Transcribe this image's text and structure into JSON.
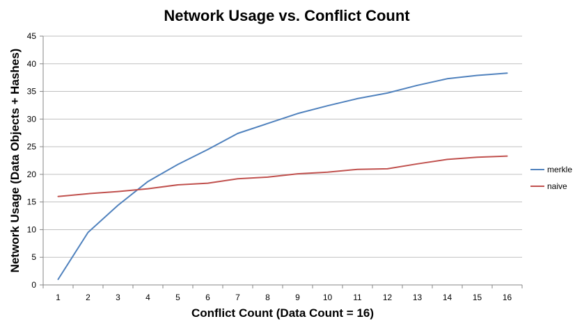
{
  "chart_data": {
    "type": "line",
    "title": "Network Usage vs. Conflict Count",
    "xlabel": "Conflict Count (Data Count = 16)",
    "ylabel": "Network Usage (Data Objects + Hashes)",
    "x": [
      1,
      2,
      3,
      4,
      5,
      6,
      7,
      8,
      9,
      10,
      11,
      12,
      13,
      14,
      15,
      16
    ],
    "ylim": [
      0,
      45
    ],
    "yticks": [
      0,
      5,
      10,
      15,
      20,
      25,
      30,
      35,
      40,
      45
    ],
    "grid": true,
    "legend_position": "right",
    "series": [
      {
        "name": "merkle",
        "color": "#4f81bd",
        "values": [
          1.0,
          9.5,
          14.4,
          18.7,
          21.8,
          24.5,
          27.4,
          29.2,
          31.0,
          32.4,
          33.7,
          34.7,
          36.1,
          37.3,
          37.9,
          38.3
        ]
      },
      {
        "name": "naive",
        "color": "#c0504d",
        "values": [
          16.0,
          16.5,
          16.9,
          17.4,
          18.1,
          18.4,
          19.2,
          19.5,
          20.1,
          20.4,
          20.9,
          21.0,
          21.9,
          22.7,
          23.1,
          23.3
        ]
      }
    ]
  }
}
